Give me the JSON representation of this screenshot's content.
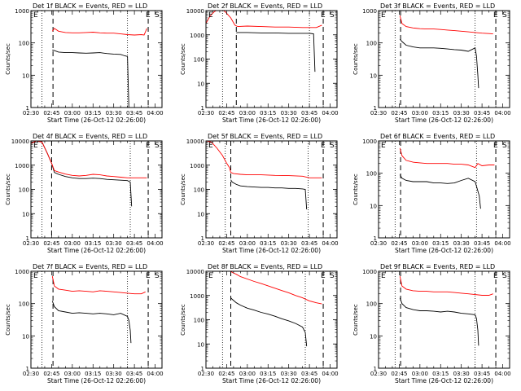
{
  "chart_data": [
    {
      "type": "line",
      "title": "Det 1f BLACK = Events, RED = LLD",
      "xlabel": "Start Time (26-Oct-12 02:26:00)",
      "ylabel": "Counts/sec",
      "yscale": "log",
      "ylim": [
        1,
        1000
      ],
      "yticks": [
        1,
        10,
        100,
        1000
      ],
      "xticks": [
        "02:30",
        "02:45",
        "03:00",
        "03:15",
        "03:30",
        "03:45",
        "04:00"
      ],
      "markers": [
        "E",
        "S"
      ],
      "series": [
        {
          "color": "#000000",
          "x": [
            45.5,
            47,
            50,
            55,
            60,
            65,
            70,
            75,
            80,
            85,
            90,
            95,
            98,
            100,
            101,
            101.5
          ],
          "y": [
            60,
            58,
            52,
            50,
            50,
            49,
            48,
            49,
            50,
            47,
            45,
            44,
            40,
            38,
            1,
            1
          ]
        },
        {
          "color": "#ff0000",
          "x": [
            45.5,
            47,
            50,
            55,
            60,
            65,
            70,
            75,
            80,
            85,
            90,
            95,
            100,
            105,
            110,
            112,
            114
          ],
          "y": [
            230,
            280,
            230,
            210,
            205,
            205,
            210,
            215,
            205,
            200,
            200,
            190,
            180,
            175,
            180,
            175,
            280
          ]
        }
      ],
      "vlines_dotted": [
        38,
        100
      ],
      "vlines_dashed": [
        46,
        115
      ]
    },
    {
      "type": "line",
      "title": "Det 2f BLACK = Events, RED = LLD",
      "xlabel": "Start Time (26-Oct-12 02:26:00)",
      "ylabel": "Counts/sec",
      "yscale": "log",
      "ylim": [
        1,
        10000
      ],
      "yticks": [
        1,
        10,
        100,
        1000,
        10000
      ],
      "xticks": [
        "02:30",
        "02:45",
        "03:00",
        "03:15",
        "03:30",
        "03:45",
        "04:00"
      ],
      "markers": [
        "E",
        "S"
      ],
      "series": [
        {
          "color": "#000000",
          "x": [
            52,
            53,
            60,
            70,
            80,
            90,
            100,
            105,
            108,
            109
          ],
          "y": [
            1200,
            1250,
            1250,
            1200,
            1200,
            1150,
            1150,
            1150,
            1100,
            30
          ]
        },
        {
          "color": "#ff0000",
          "x": [
            30,
            33,
            36,
            40,
            44,
            48,
            51,
            53,
            60,
            70,
            80,
            90,
            100,
            110,
            114
          ],
          "y": [
            3000,
            6000,
            9000,
            12000,
            9000,
            5000,
            2500,
            2200,
            2300,
            2200,
            2100,
            2100,
            2000,
            2000,
            2500
          ]
        }
      ],
      "vlines_dotted": [
        42,
        105
      ],
      "vlines_dashed": [
        52,
        115
      ]
    },
    {
      "type": "line",
      "title": "Det 3f BLACK = Events, RED = LLD",
      "xlabel": "Start Time (26-Oct-12 02:26:00)",
      "ylabel": "Counts/sec",
      "yscale": "log",
      "ylim": [
        1,
        1000
      ],
      "yticks": [
        1,
        10,
        100,
        1000
      ],
      "xticks": [
        "02:30",
        "02:45",
        "03:00",
        "03:15",
        "03:30",
        "03:45",
        "04:00"
      ],
      "markers": [
        "E",
        "S"
      ],
      "series": [
        {
          "color": "#000000",
          "x": [
            45.5,
            47,
            50,
            55,
            60,
            65,
            70,
            75,
            80,
            85,
            90,
            95,
            100,
            101,
            102,
            102.5
          ],
          "y": [
            130,
            110,
            85,
            75,
            70,
            70,
            70,
            68,
            65,
            62,
            60,
            55,
            70,
            40,
            10,
            4
          ]
        },
        {
          "color": "#ff0000",
          "x": [
            45.5,
            47,
            50,
            55,
            60,
            65,
            70,
            75,
            80,
            85,
            90,
            95,
            100,
            105,
            110,
            113
          ],
          "y": [
            700,
            400,
            320,
            290,
            275,
            270,
            270,
            260,
            250,
            240,
            230,
            220,
            210,
            200,
            195,
            190
          ]
        }
      ],
      "vlines_dotted": [
        42,
        100
      ],
      "vlines_dashed": [
        46,
        115
      ]
    },
    {
      "type": "line",
      "title": "Det 4f BLACK = Events, RED = LLD",
      "xlabel": "Start Time (26-Oct-12 02:26:00)",
      "ylabel": "Counts/sec",
      "yscale": "log",
      "ylim": [
        1,
        10000
      ],
      "yticks": [
        1,
        10,
        100,
        1000,
        10000
      ],
      "xticks": [
        "02:30",
        "02:45",
        "03:00",
        "03:15",
        "03:30",
        "03:45",
        "04:00"
      ],
      "markers": [
        "E",
        "S"
      ],
      "series": [
        {
          "color": "#000000",
          "x": [
            30,
            34,
            38,
            42,
            45,
            47,
            50,
            55,
            60,
            65,
            70,
            75,
            80,
            85,
            90,
            95,
            100,
            102,
            103
          ],
          "y": [
            8000,
            10000,
            9000,
            3000,
            1200,
            500,
            420,
            340,
            300,
            280,
            280,
            290,
            280,
            260,
            250,
            240,
            230,
            200,
            20
          ]
        },
        {
          "color": "#ff0000",
          "x": [
            30,
            34,
            38,
            42,
            45,
            47,
            50,
            55,
            60,
            65,
            70,
            75,
            80,
            85,
            90,
            95,
            100,
            105,
            110,
            114
          ],
          "y": [
            8000,
            10000,
            9000,
            3000,
            1200,
            600,
            520,
            430,
            380,
            360,
            380,
            420,
            400,
            360,
            340,
            320,
            300,
            300,
            300,
            300
          ]
        }
      ],
      "vlines_dotted": [
        38,
        102
      ],
      "vlines_dashed": [
        45,
        115
      ]
    },
    {
      "type": "line",
      "title": "Det 5f BLACK = Events, RED = LLD",
      "xlabel": "Start Time (26-Oct-12 02:26:00)",
      "ylabel": "Counts/sec",
      "yscale": "log",
      "ylim": [
        1,
        10000
      ],
      "yticks": [
        1,
        10,
        100,
        1000,
        10000
      ],
      "xticks": [
        "02:30",
        "02:45",
        "03:00",
        "03:15",
        "03:30",
        "03:45",
        "04:00"
      ],
      "markers": [
        "E",
        "S"
      ],
      "series": [
        {
          "color": "#000000",
          "x": [
            48,
            49,
            52,
            55,
            60,
            65,
            70,
            75,
            80,
            85,
            90,
            95,
            100,
            102,
            103
          ],
          "y": [
            250,
            200,
            160,
            140,
            130,
            125,
            120,
            120,
            115,
            115,
            110,
            110,
            105,
            100,
            15
          ]
        },
        {
          "color": "#ff0000",
          "x": [
            30,
            34,
            38,
            42,
            45,
            47,
            48,
            50,
            55,
            60,
            70,
            80,
            90,
            100,
            105,
            110,
            114
          ],
          "y": [
            10000,
            9000,
            5000,
            2500,
            1200,
            800,
            500,
            450,
            420,
            400,
            400,
            380,
            370,
            350,
            300,
            300,
            300
          ]
        }
      ],
      "vlines_dotted": [
        44,
        104
      ],
      "vlines_dashed": [
        48,
        115
      ]
    },
    {
      "type": "line",
      "title": "Det 6f BLACK = Events, RED = LLD",
      "xlabel": "Start Time (26-Oct-12 02:26:00)",
      "ylabel": "Counts/sec",
      "yscale": "log",
      "ylim": [
        1,
        1000
      ],
      "yticks": [
        1,
        10,
        100,
        1000
      ],
      "xticks": [
        "02:30",
        "02:45",
        "03:00",
        "03:15",
        "03:30",
        "03:45",
        "04:00"
      ],
      "markers": [
        "E",
        "S"
      ],
      "series": [
        {
          "color": "#000000",
          "x": [
            45.5,
            47,
            50,
            55,
            60,
            65,
            70,
            75,
            80,
            85,
            90,
            95,
            100,
            101,
            103,
            104
          ],
          "y": [
            90,
            70,
            60,
            55,
            55,
            55,
            50,
            50,
            48,
            50,
            60,
            70,
            55,
            40,
            20,
            8
          ]
        },
        {
          "color": "#ff0000",
          "x": [
            45.5,
            47,
            50,
            55,
            60,
            65,
            70,
            75,
            80,
            85,
            90,
            95,
            100,
            102,
            105,
            110,
            114
          ],
          "y": [
            600,
            350,
            250,
            220,
            210,
            200,
            200,
            200,
            200,
            190,
            190,
            180,
            150,
            200,
            170,
            180,
            180
          ]
        }
      ],
      "vlines_dotted": [
        42,
        101
      ],
      "vlines_dashed": [
        46,
        115
      ]
    },
    {
      "type": "line",
      "title": "Det 7f BLACK = Events, RED = LLD",
      "xlabel": "Start Time (26-Oct-12 02:26:00)",
      "ylabel": "Counts/sec",
      "yscale": "log",
      "ylim": [
        1,
        1000
      ],
      "yticks": [
        1,
        10,
        100,
        1000
      ],
      "xticks": [
        "02:30",
        "02:45",
        "03:00",
        "03:15",
        "03:30",
        "03:45",
        "04:00"
      ],
      "markers": [
        "E",
        "S"
      ],
      "series": [
        {
          "color": "#000000",
          "x": [
            45.5,
            47,
            50,
            55,
            60,
            65,
            70,
            75,
            80,
            85,
            90,
            95,
            100,
            101,
            102,
            102.5
          ],
          "y": [
            120,
            80,
            60,
            55,
            50,
            52,
            50,
            48,
            50,
            48,
            45,
            50,
            40,
            30,
            15,
            6
          ]
        },
        {
          "color": "#ff0000",
          "x": [
            45.5,
            47,
            50,
            55,
            60,
            65,
            70,
            75,
            80,
            85,
            90,
            95,
            100,
            105,
            110,
            113
          ],
          "y": [
            700,
            350,
            280,
            260,
            240,
            250,
            240,
            230,
            250,
            240,
            230,
            220,
            210,
            200,
            200,
            230
          ]
        }
      ],
      "vlines_dotted": [
        38,
        100
      ],
      "vlines_dashed": [
        46,
        115
      ]
    },
    {
      "type": "line",
      "title": "Det 8f BLACK = Events, RED = LLD",
      "xlabel": "Start Time (26-Oct-12 02:26:00)",
      "ylabel": "Counts/sec",
      "yscale": "log",
      "ylim": [
        1,
        10000
      ],
      "yticks": [
        1,
        10,
        100,
        1000,
        10000
      ],
      "xticks": [
        "02:30",
        "02:45",
        "03:00",
        "03:15",
        "03:30",
        "03:45",
        "04:00"
      ],
      "markers": [
        "E",
        "S"
      ],
      "series": [
        {
          "color": "#000000",
          "x": [
            48,
            49,
            52,
            55,
            60,
            65,
            70,
            75,
            80,
            85,
            90,
            95,
            100,
            102,
            103
          ],
          "y": [
            800,
            700,
            500,
            400,
            300,
            250,
            200,
            170,
            140,
            110,
            90,
            70,
            50,
            30,
            8
          ]
        },
        {
          "color": "#ff0000",
          "x": [
            48,
            49,
            52,
            55,
            60,
            65,
            70,
            75,
            80,
            85,
            90,
            95,
            100,
            105,
            110,
            114
          ],
          "y": [
            10000,
            9000,
            7500,
            6000,
            4800,
            3800,
            3100,
            2500,
            2000,
            1600,
            1300,
            1000,
            800,
            600,
            500,
            450
          ]
        }
      ],
      "vlines_dotted": [
        42,
        102
      ],
      "vlines_dashed": [
        48,
        115
      ]
    },
    {
      "type": "line",
      "title": "Det 9f BLACK = Events, RED = LLD",
      "xlabel": "Start Time (26-Oct-12 02:26:00)",
      "ylabel": "Counts/sec",
      "yscale": "log",
      "ylim": [
        1,
        1000
      ],
      "yticks": [
        1,
        10,
        100,
        1000
      ],
      "xticks": [
        "02:30",
        "02:45",
        "03:00",
        "03:15",
        "03:30",
        "03:45",
        "04:00"
      ],
      "markers": [
        "E",
        "S"
      ],
      "series": [
        {
          "color": "#000000",
          "x": [
            45.5,
            47,
            50,
            55,
            60,
            65,
            70,
            75,
            80,
            85,
            90,
            95,
            100,
            101,
            102,
            102.5
          ],
          "y": [
            150,
            100,
            75,
            65,
            60,
            60,
            58,
            55,
            58,
            55,
            50,
            48,
            45,
            35,
            15,
            5
          ]
        },
        {
          "color": "#ff0000",
          "x": [
            45.5,
            47,
            50,
            55,
            60,
            65,
            70,
            75,
            80,
            85,
            90,
            95,
            100,
            105,
            110,
            113
          ],
          "y": [
            700,
            350,
            280,
            250,
            240,
            240,
            230,
            230,
            230,
            220,
            210,
            200,
            190,
            180,
            180,
            200
          ]
        }
      ],
      "vlines_dotted": [
        42,
        100
      ],
      "vlines_dashed": [
        46,
        115
      ]
    }
  ]
}
